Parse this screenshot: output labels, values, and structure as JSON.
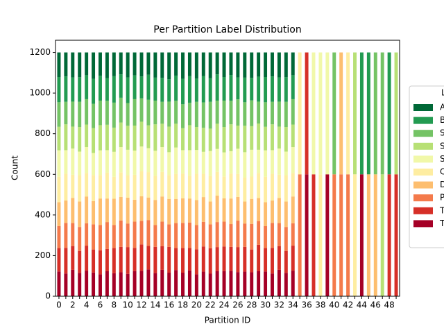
{
  "chart_data": {
    "type": "stacked_bar",
    "title": "Per Partition Label Distribution",
    "x_label": "Partition ID",
    "y_label": "Count",
    "legend_title": "L",
    "legend_position": "right",
    "categories": [
      "0",
      null,
      "2",
      null,
      "4",
      null,
      "6",
      null,
      "8",
      null,
      "10",
      null,
      "12",
      null,
      "14",
      null,
      "16",
      null,
      "18",
      null,
      "20",
      null,
      "22",
      null,
      "24",
      null,
      "26",
      null,
      "28",
      null,
      "30",
      null,
      "32",
      null,
      "34",
      null,
      "36",
      null,
      "38",
      null,
      "40",
      null,
      "42",
      null,
      "44",
      null,
      "46",
      null,
      "48",
      null
    ],
    "ylim": [
      0,
      1260
    ],
    "yticks": [
      0,
      200,
      400,
      600,
      800,
      1000,
      1200
    ],
    "series": [
      {
        "name": "T",
        "color": "#a50026",
        "values": [
          122,
          112,
          130,
          115,
          126,
          117,
          108,
          123,
          113,
          118,
          110,
          124,
          125,
          132,
          114,
          130,
          116,
          129,
          116,
          127,
          108,
          121,
          111,
          123,
          124,
          125,
          119,
          121,
          118,
          123,
          122,
          112,
          130,
          115,
          126,
          0,
          600,
          0,
          0,
          600,
          0,
          0,
          0,
          0,
          600,
          0,
          0,
          0,
          0,
          0
        ]
      },
      {
        "name": "T",
        "color": "#d62f27",
        "values": [
          115,
          126,
          117,
          108,
          123,
          113,
          118,
          110,
          124,
          125,
          132,
          114,
          130,
          116,
          129,
          116,
          127,
          108,
          121,
          111,
          123,
          124,
          125,
          119,
          121,
          118,
          123,
          122,
          112,
          130,
          115,
          126,
          117,
          108,
          123,
          0,
          600,
          600,
          0,
          0,
          0,
          0,
          0,
          0,
          0,
          0,
          0,
          0,
          600,
          600
        ]
      },
      {
        "name": "P",
        "color": "#f47a4b",
        "values": [
          108,
          123,
          113,
          118,
          110,
          124,
          125,
          132,
          114,
          130,
          116,
          129,
          116,
          127,
          108,
          121,
          111,
          123,
          124,
          125,
          119,
          121,
          118,
          123,
          122,
          112,
          130,
          115,
          126,
          117,
          108,
          123,
          113,
          118,
          110,
          600,
          0,
          0,
          0,
          0,
          600,
          600,
          600,
          0,
          0,
          0,
          0,
          0,
          0,
          0
        ]
      },
      {
        "name": "D",
        "color": "#fdbe6f",
        "values": [
          118,
          110,
          124,
          125,
          132,
          114,
          130,
          116,
          129,
          116,
          127,
          108,
          121,
          111,
          123,
          124,
          125,
          119,
          121,
          118,
          123,
          122,
          112,
          130,
          115,
          126,
          117,
          108,
          123,
          113,
          118,
          110,
          124,
          125,
          132,
          0,
          0,
          0,
          0,
          0,
          0,
          600,
          0,
          0,
          0,
          600,
          600,
          0,
          0,
          0
        ]
      },
      {
        "name": "C",
        "color": "#feeda1",
        "values": [
          125,
          132,
          114,
          130,
          116,
          129,
          116,
          127,
          108,
          121,
          111,
          123,
          124,
          125,
          119,
          121,
          118,
          123,
          122,
          112,
          130,
          115,
          126,
          117,
          108,
          123,
          113,
          118,
          110,
          124,
          125,
          132,
          114,
          130,
          116,
          600,
          0,
          0,
          600,
          0,
          0,
          0,
          600,
          600,
          0,
          0,
          0,
          0,
          0,
          0
        ]
      },
      {
        "name": "S",
        "color": "#f1f8a9",
        "values": [
          130,
          116,
          129,
          116,
          127,
          108,
          121,
          111,
          123,
          124,
          125,
          119,
          121,
          118,
          123,
          122,
          112,
          130,
          115,
          126,
          117,
          108,
          123,
          113,
          118,
          110,
          124,
          125,
          132,
          114,
          130,
          116,
          129,
          116,
          127,
          0,
          0,
          600,
          600,
          600,
          0,
          0,
          0,
          0,
          0,
          0,
          0,
          0,
          0,
          0
        ]
      },
      {
        "name": "S",
        "color": "#b7e075",
        "values": [
          116,
          127,
          108,
          121,
          111,
          123,
          124,
          125,
          119,
          121,
          118,
          123,
          122,
          112,
          130,
          115,
          126,
          117,
          108,
          123,
          113,
          118,
          110,
          124,
          125,
          132,
          114,
          130,
          116,
          129,
          116,
          127,
          108,
          121,
          111,
          0,
          0,
          0,
          0,
          0,
          0,
          0,
          0,
          600,
          0,
          0,
          0,
          600,
          0,
          600
        ]
      },
      {
        "name": "S",
        "color": "#74c365",
        "values": [
          121,
          111,
          123,
          124,
          125,
          119,
          121,
          118,
          123,
          122,
          112,
          130,
          115,
          126,
          117,
          108,
          123,
          113,
          118,
          110,
          124,
          125,
          132,
          114,
          130,
          116,
          129,
          116,
          127,
          108,
          121,
          111,
          123,
          124,
          125,
          0,
          0,
          0,
          0,
          0,
          600,
          0,
          0,
          0,
          0,
          0,
          600,
          600,
          0,
          0
        ]
      },
      {
        "name": "B",
        "color": "#229b51",
        "values": [
          124,
          125,
          119,
          121,
          118,
          123,
          122,
          112,
          130,
          115,
          126,
          117,
          108,
          123,
          113,
          118,
          110,
          124,
          125,
          132,
          114,
          130,
          116,
          129,
          116,
          127,
          108,
          121,
          111,
          123,
          124,
          125,
          119,
          121,
          118,
          0,
          0,
          0,
          0,
          0,
          0,
          0,
          0,
          0,
          600,
          600,
          0,
          0,
          600,
          0
        ]
      },
      {
        "name": "A",
        "color": "#006837",
        "values": [
          121,
          118,
          123,
          122,
          112,
          130,
          115,
          126,
          117,
          108,
          123,
          113,
          118,
          110,
          124,
          125,
          132,
          114,
          130,
          116,
          129,
          116,
          127,
          108,
          121,
          111,
          123,
          124,
          125,
          119,
          121,
          118,
          123,
          122,
          112,
          0,
          0,
          0,
          0,
          0,
          0,
          0,
          0,
          0,
          0,
          0,
          0,
          0,
          0,
          0
        ]
      }
    ]
  }
}
